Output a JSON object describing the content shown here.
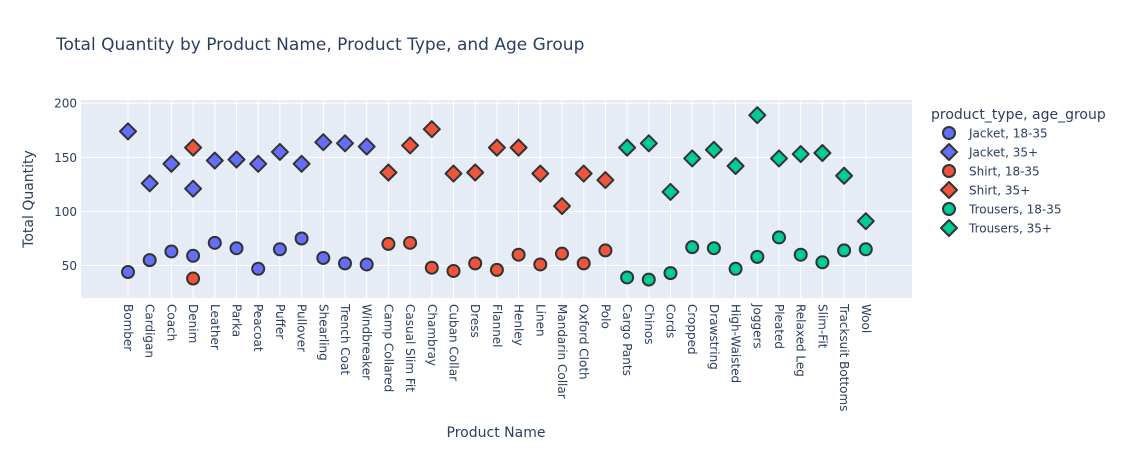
{
  "chart_data": {
    "type": "scatter",
    "title": "Total Quantity by Product Name, Product Type, and Age Group",
    "xlabel": "Product Name",
    "ylabel": "Total Quantity",
    "ylim": [
      20,
      203
    ],
    "yticks": [
      50,
      100,
      150,
      200
    ],
    "grid": true,
    "legend_title": "product_type, age_group",
    "legend_position": "right",
    "categories": [
      "Bomber",
      "Cardigan",
      "Coach",
      "Denim",
      "Leather",
      "Parka",
      "Peacoat",
      "Puffer",
      "Pullover",
      "Shearling",
      "Trench Coat",
      "Windbreaker",
      "Camp Collared",
      "Casual Slim Fit",
      "Chambray",
      "Cuban Collar",
      "Dress",
      "Flannel",
      "Henley",
      "Linen",
      "Mandarin Collar",
      "Oxford Cloth",
      "Polo",
      "Cargo Pants",
      "Chinos",
      "Cords",
      "Cropped",
      "Drawstring",
      "High-Waisted",
      "Joggers",
      "Pleated",
      "Relaxed Leg",
      "Slim-Fit",
      "Tracksuit Bottoms",
      "Wool"
    ],
    "series": [
      {
        "name": "Jacket, 18-35",
        "color": "#636efa",
        "symbol": "circle",
        "x": [
          "Bomber",
          "Cardigan",
          "Coach",
          "Denim",
          "Leather",
          "Parka",
          "Peacoat",
          "Puffer",
          "Pullover",
          "Shearling",
          "Trench Coat",
          "Windbreaker"
        ],
        "y": [
          44,
          55,
          63,
          59,
          71,
          66,
          47,
          65,
          75,
          57,
          52,
          51
        ]
      },
      {
        "name": "Jacket, 35+",
        "color": "#636efa",
        "symbol": "diamond",
        "x": [
          "Bomber",
          "Cardigan",
          "Coach",
          "Denim",
          "Leather",
          "Parka",
          "Peacoat",
          "Puffer",
          "Pullover",
          "Shearling",
          "Trench Coat",
          "Windbreaker"
        ],
        "y": [
          174,
          126,
          144,
          121,
          147,
          148,
          144,
          155,
          144,
          164,
          163,
          160
        ]
      },
      {
        "name": "Shirt, 18-35",
        "color": "#ef553b",
        "symbol": "circle",
        "x": [
          "Denim",
          "Camp Collared",
          "Casual Slim Fit",
          "Chambray",
          "Cuban Collar",
          "Dress",
          "Flannel",
          "Henley",
          "Linen",
          "Mandarin Collar",
          "Oxford Cloth",
          "Polo"
        ],
        "y": [
          38,
          70,
          71,
          48,
          45,
          52,
          46,
          60,
          51,
          61,
          52,
          64
        ]
      },
      {
        "name": "Shirt, 35+",
        "color": "#ef553b",
        "symbol": "diamond",
        "x": [
          "Denim",
          "Camp Collared",
          "Casual Slim Fit",
          "Chambray",
          "Cuban Collar",
          "Dress",
          "Flannel",
          "Henley",
          "Linen",
          "Mandarin Collar",
          "Oxford Cloth",
          "Polo"
        ],
        "y": [
          159,
          136,
          161,
          176,
          135,
          136,
          159,
          159,
          135,
          105,
          135,
          129
        ]
      },
      {
        "name": "Trousers, 18-35",
        "color": "#00cc96",
        "symbol": "circle",
        "x": [
          "Cargo Pants",
          "Chinos",
          "Cords",
          "Cropped",
          "Drawstring",
          "High-Waisted",
          "Joggers",
          "Pleated",
          "Relaxed Leg",
          "Slim-Fit",
          "Tracksuit Bottoms",
          "Wool"
        ],
        "y": [
          39,
          37,
          43,
          67,
          66,
          47,
          58,
          76,
          60,
          53,
          64,
          65
        ]
      },
      {
        "name": "Trousers, 35+",
        "color": "#00cc96",
        "symbol": "diamond",
        "x": [
          "Cargo Pants",
          "Chinos",
          "Cords",
          "Cropped",
          "Drawstring",
          "High-Waisted",
          "Joggers",
          "Pleated",
          "Relaxed Leg",
          "Slim-Fit",
          "Tracksuit Bottoms",
          "Wool"
        ],
        "y": [
          159,
          163,
          118,
          149,
          157,
          142,
          189,
          149,
          153,
          154,
          133,
          91
        ]
      }
    ]
  }
}
